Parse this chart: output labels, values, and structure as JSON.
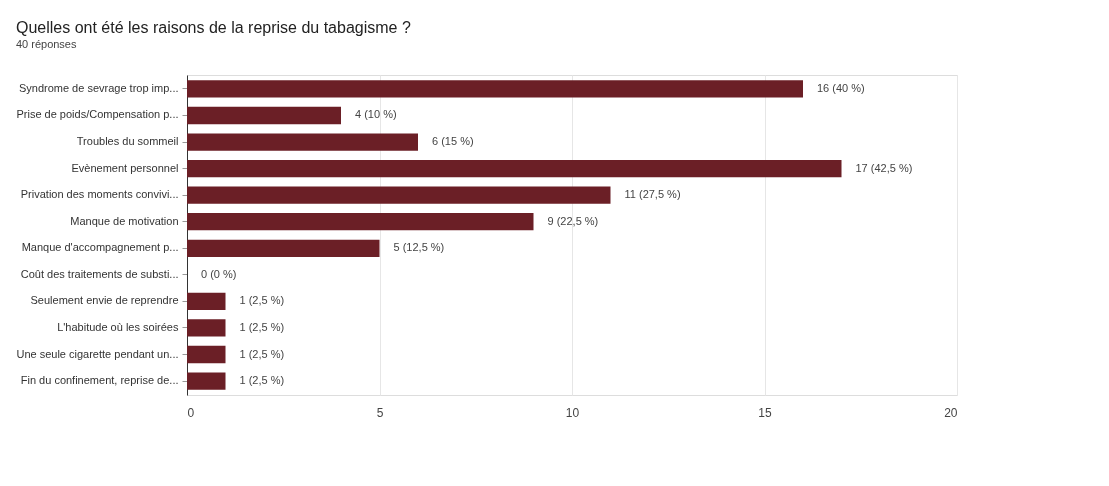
{
  "chart_data": {
    "type": "bar",
    "orientation": "horizontal",
    "title": "Quelles ont été les raisons de la reprise du tabagisme ?",
    "subtitle": "40 réponses",
    "categories": [
      "Syndrome de sevrage trop imp...",
      "Prise de poids/Compensation p...",
      "Troubles du sommeil",
      "Evènement personnel",
      "Privation des moments convivi...",
      "Manque de motivation",
      "Manque d'accompagnement p...",
      "Coût des traitements de substi...",
      "Seulement envie de reprendre",
      "L'habitude où les soirées",
      "Une seule cigarette pendant un...",
      "Fin du confinement, reprise de..."
    ],
    "values": [
      16,
      4,
      6,
      17,
      11,
      9,
      5,
      0,
      1,
      1,
      1,
      1
    ],
    "value_labels": [
      "16 (40 %)",
      "4 (10 %)",
      "6 (15 %)",
      "17 (42,5 %)",
      "11 (27,5 %)",
      "9 (22,5 %)",
      "5 (12,5 %)",
      "0 (0 %)",
      "1 (2,5 %)",
      "1 (2,5 %)",
      "1 (2,5 %)",
      "1 (2,5 %)"
    ],
    "color": "#6b1f26",
    "xlim": [
      0,
      20
    ],
    "xticks": [
      0,
      5,
      10,
      15,
      20
    ],
    "grid": "x"
  }
}
